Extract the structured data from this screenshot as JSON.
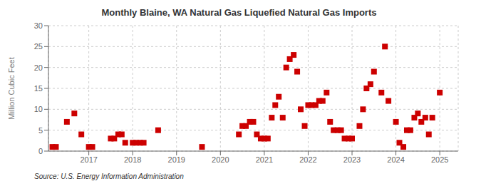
{
  "chart_data": {
    "type": "scatter",
    "title": "Monthly Blaine, WA Natural Gas Liquefied Natural Gas Imports",
    "ylabel": "Million Cubic Feet",
    "source": "Source: U.S. Energy Information Administration",
    "x": [
      2016.17,
      2016.25,
      2016.5,
      2016.67,
      2016.83,
      2017.0,
      2017.08,
      2017.5,
      2017.58,
      2017.67,
      2017.75,
      2017.83,
      2018.0,
      2018.08,
      2018.17,
      2018.25,
      2018.58,
      2019.58,
      2020.42,
      2020.5,
      2020.58,
      2020.67,
      2020.75,
      2020.83,
      2020.92,
      2021.0,
      2021.08,
      2021.17,
      2021.25,
      2021.33,
      2021.42,
      2021.5,
      2021.58,
      2021.67,
      2021.75,
      2021.83,
      2021.92,
      2022.0,
      2022.08,
      2022.17,
      2022.25,
      2022.33,
      2022.42,
      2022.5,
      2022.58,
      2022.67,
      2022.75,
      2022.83,
      2022.92,
      2023.0,
      2023.17,
      2023.25,
      2023.33,
      2023.42,
      2023.5,
      2023.67,
      2023.75,
      2023.83,
      2024.0,
      2024.08,
      2024.17,
      2024.25,
      2024.33,
      2024.42,
      2024.5,
      2024.58,
      2024.67,
      2024.75,
      2024.83,
      2025.0
    ],
    "values": [
      1,
      1,
      7,
      9,
      4,
      1,
      1,
      3,
      3,
      4,
      4,
      2,
      2,
      2,
      2,
      2,
      5,
      1,
      4,
      6,
      6,
      7,
      7,
      4,
      3,
      3,
      3,
      8,
      11,
      13,
      8,
      20,
      22,
      23,
      19,
      10,
      6,
      11,
      11,
      11,
      12,
      12,
      14,
      7,
      5,
      5,
      5,
      3,
      3,
      3,
      6,
      10,
      15,
      16,
      19,
      14,
      25,
      12,
      7,
      2,
      1,
      5,
      5,
      8,
      9,
      7,
      8,
      4,
      8,
      14
    ],
    "color": "#cc0000",
    "marker": "square",
    "xlim": [
      2016.08,
      2025.42
    ],
    "xticks": [
      2017,
      2018,
      2019,
      2020,
      2021,
      2022,
      2023,
      2024,
      2025
    ],
    "ylim": [
      0,
      30
    ],
    "yticks": [
      0,
      5,
      10,
      15,
      20,
      25,
      30
    ],
    "grid": true
  }
}
